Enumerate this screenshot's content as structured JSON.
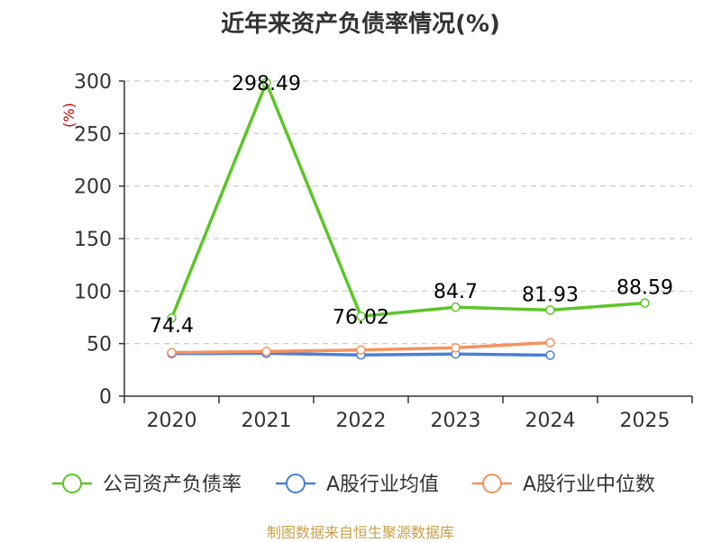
{
  "title": "近年来资产负债率情况(%)",
  "source": "制图数据来自恒生聚源数据库",
  "chart_data": {
    "type": "line",
    "title": "近年来资产负债率情况(%)",
    "ylabel": "(%)",
    "ylim": [
      0,
      300
    ],
    "yticks": [
      0,
      50,
      100,
      150,
      200,
      250,
      300
    ],
    "categories": [
      "2020",
      "2021",
      "2022",
      "2023",
      "2024",
      "2025"
    ],
    "grid": true,
    "legend_position": "bottom",
    "series": [
      {
        "name": "公司资产负债率",
        "color": "#5cc527",
        "values": [
          74.4,
          298.49,
          76.02,
          84.7,
          81.93,
          88.59
        ],
        "labels": [
          "74.4",
          "298.49",
          "76.02",
          "84.7",
          "81.93",
          "88.59"
        ]
      },
      {
        "name": "A股行业均值",
        "color": "#4a7fd6",
        "values": [
          40.5,
          40.8,
          39.2,
          40.1,
          39.0,
          null
        ]
      },
      {
        "name": "A股行业中位数",
        "color": "#f5925d",
        "values": [
          41.5,
          42.5,
          44.0,
          46.0,
          51.0,
          null
        ]
      }
    ]
  }
}
